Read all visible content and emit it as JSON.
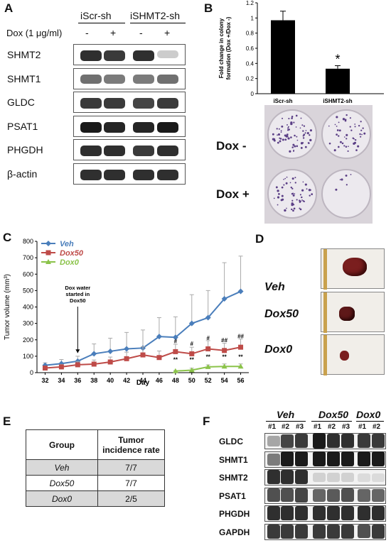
{
  "panel_a": {
    "label": "A",
    "groups": [
      "iScr-sh",
      "iSHMT2-sh"
    ],
    "dox_label": "Dox (1 μg/ml)",
    "dox_marks": [
      "-",
      "+",
      "-",
      "+"
    ],
    "blots": [
      {
        "name": "SHMT2",
        "bands": [
          0.85,
          0.8,
          0.85,
          0.12
        ]
      },
      {
        "name": "SHMT1",
        "bands": [
          0.55,
          0.5,
          0.5,
          0.55
        ]
      },
      {
        "name": "GLDC",
        "bands": [
          0.8,
          0.8,
          0.75,
          0.8
        ]
      },
      {
        "name": "PSAT1",
        "bands": [
          0.95,
          0.9,
          0.9,
          0.95
        ]
      },
      {
        "name": "PHGDH",
        "bands": [
          0.85,
          0.85,
          0.8,
          0.85
        ]
      },
      {
        "name": "β-actin",
        "bands": [
          0.85,
          0.85,
          0.85,
          0.85
        ]
      }
    ]
  },
  "panel_b": {
    "label": "B",
    "photo_labels": [
      "Dox -",
      "Dox +"
    ],
    "chart_data": {
      "type": "bar",
      "categories": [
        "iScr-sh",
        "iSHMT2-sh"
      ],
      "values": [
        0.97,
        0.33
      ],
      "errors": [
        0.12,
        0.04
      ],
      "ylabel": "Fold change in colony formation (Dox +/Dox -)",
      "ylim": [
        0,
        1.2
      ],
      "yticks": [
        "0",
        "0.2",
        "0.4",
        "0.6",
        "0.8",
        "1",
        "1.2"
      ],
      "annotation": "*",
      "color": "#000000"
    }
  },
  "panel_c": {
    "label": "C",
    "chart_data": {
      "type": "line",
      "x": [
        32,
        34,
        36,
        38,
        40,
        42,
        44,
        46,
        48,
        50,
        52,
        54,
        56
      ],
      "xlabel": "Day",
      "ylabel": "Tumor volume (mm³)",
      "ylim": [
        0,
        800
      ],
      "yticks": [
        "0",
        "100",
        "200",
        "300",
        "400",
        "500",
        "600",
        "700",
        "800"
      ],
      "series": [
        {
          "name": "Veh",
          "color": "#4a7ebb",
          "marker": "diamond",
          "x": [
            32,
            34,
            36,
            38,
            40,
            42,
            44,
            46,
            48,
            50,
            52,
            54,
            56
          ],
          "values": [
            45,
            55,
            70,
            115,
            130,
            145,
            150,
            220,
            215,
            300,
            335,
            450,
            495
          ],
          "errors": [
            15,
            25,
            30,
            60,
            80,
            100,
            110,
            115,
            125,
            175,
            165,
            220,
            215
          ]
        },
        {
          "name": "Dox50",
          "color": "#be4b48",
          "marker": "square",
          "x": [
            32,
            34,
            36,
            38,
            40,
            42,
            44,
            46,
            48,
            50,
            52,
            54,
            56
          ],
          "values": [
            28,
            35,
            48,
            52,
            65,
            85,
            108,
            92,
            128,
            115,
            145,
            135,
            155
          ],
          "errors": [
            10,
            15,
            20,
            25,
            30,
            40,
            50,
            40,
            45,
            40,
            50,
            45,
            50
          ]
        },
        {
          "name": "Dox0",
          "color": "#8bc34a",
          "marker": "triangle",
          "x": [
            48,
            50,
            52,
            54,
            56
          ],
          "values": [
            10,
            15,
            35,
            38,
            38
          ],
          "errors": [
            3,
            12,
            12,
            15,
            15
          ]
        }
      ],
      "annotation": {
        "text": "Dox water started in Dox50",
        "x": 36
      },
      "marks": [
        {
          "text": "#",
          "x": 48,
          "y": 180
        },
        {
          "text": "#",
          "x": 50,
          "y": 165
        },
        {
          "text": "#",
          "x": 52,
          "y": 200
        },
        {
          "text": "##",
          "x": 54,
          "y": 185
        },
        {
          "text": "##",
          "x": 56,
          "y": 210
        },
        {
          "text": "**",
          "x": 48,
          "y": 68
        },
        {
          "text": "**",
          "x": 50,
          "y": 68
        },
        {
          "text": "**",
          "x": 52,
          "y": 85
        },
        {
          "text": "**",
          "x": 54,
          "y": 85
        },
        {
          "text": "**",
          "x": 56,
          "y": 85
        }
      ],
      "legend": "top-left"
    }
  },
  "panel_d": {
    "label": "D",
    "rows": [
      "Veh",
      "Dox50",
      "Dox0"
    ]
  },
  "panel_e": {
    "label": "E",
    "headers": [
      "Group",
      "Tumor incidence rate"
    ],
    "rows": [
      {
        "group": "Veh",
        "rate": "7/7"
      },
      {
        "group": "Dox50",
        "rate": "7/7"
      },
      {
        "group": "Dox0",
        "rate": "2/5"
      }
    ]
  },
  "panel_f": {
    "label": "F",
    "groups": [
      "Veh",
      "Dox50",
      "Dox0"
    ],
    "lanes": [
      "#1",
      "#2",
      "#3",
      "#1",
      "#2",
      "#3",
      "#1",
      "#2"
    ],
    "blots": [
      {
        "name": "GLDC",
        "bands": [
          0.3,
          0.75,
          0.8,
          0.95,
          0.85,
          0.85,
          0.8,
          0.8
        ]
      },
      {
        "name": "SHMT1",
        "bands": [
          0.5,
          0.95,
          0.95,
          0.95,
          0.95,
          0.95,
          0.95,
          0.95
        ]
      },
      {
        "name": "SHMT2",
        "bands": [
          0.85,
          0.85,
          0.85,
          0.1,
          0.1,
          0.1,
          0.05,
          0.05
        ]
      },
      {
        "name": "PSAT1",
        "bands": [
          0.7,
          0.7,
          0.75,
          0.6,
          0.65,
          0.7,
          0.6,
          0.6
        ]
      },
      {
        "name": "PHGDH",
        "bands": [
          0.85,
          0.85,
          0.85,
          0.85,
          0.85,
          0.85,
          0.85,
          0.85
        ]
      },
      {
        "name": "GAPDH",
        "bands": [
          0.8,
          0.8,
          0.8,
          0.8,
          0.8,
          0.8,
          0.7,
          0.8
        ]
      }
    ]
  }
}
